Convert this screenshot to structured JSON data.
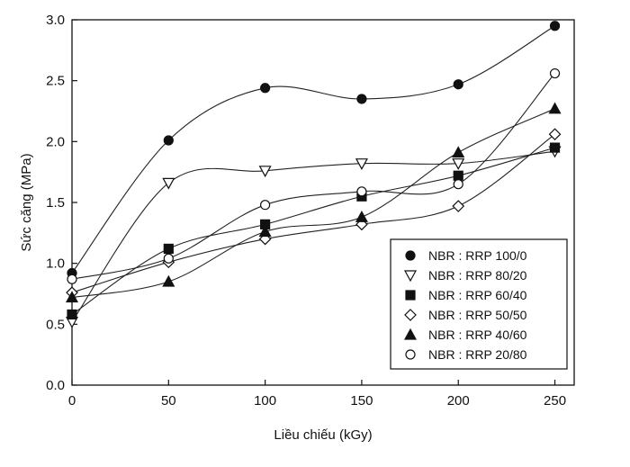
{
  "chart_data": {
    "type": "line",
    "title": "",
    "xlabel": "Liều chiếu (kGy)",
    "ylabel": "Sức căng (MPa)",
    "x": [
      0,
      50,
      100,
      150,
      200,
      250
    ],
    "xlim": [
      0,
      260
    ],
    "ylim": [
      0.0,
      3.0
    ],
    "xticks": [
      0,
      50,
      100,
      150,
      200,
      250
    ],
    "yticks": [
      0.0,
      0.5,
      1.0,
      1.5,
      2.0,
      2.5,
      3.0
    ],
    "xtick_labels": [
      "0",
      "50",
      "100",
      "150",
      "200",
      "250"
    ],
    "ytick_labels": [
      "0.0",
      "0.5",
      "1.0",
      "1.5",
      "2.0",
      "2.5",
      "3.0"
    ],
    "grid": false,
    "legend_position": "bottom-right",
    "series": [
      {
        "name": "NBR : RRP 100/0",
        "marker": "circle-filled",
        "values": [
          0.92,
          2.01,
          2.44,
          2.35,
          2.47,
          2.95
        ]
      },
      {
        "name": "NBR : RRP 80/20",
        "marker": "triangle-down-open",
        "values": [
          0.52,
          1.66,
          1.76,
          1.82,
          1.82,
          1.92
        ]
      },
      {
        "name": "NBR : RRP 60/40",
        "marker": "square-filled",
        "values": [
          0.58,
          1.12,
          1.32,
          1.55,
          1.72,
          1.95
        ]
      },
      {
        "name": "NBR : RRP 50/50",
        "marker": "diamond-open",
        "values": [
          0.76,
          1.01,
          1.2,
          1.32,
          1.47,
          2.06
        ]
      },
      {
        "name": "NBR : RRP 40/60",
        "marker": "triangle-up-filled",
        "values": [
          0.72,
          0.85,
          1.26,
          1.38,
          1.91,
          2.27
        ]
      },
      {
        "name": "NBR : RRP 20/80",
        "marker": "circle-open",
        "values": [
          0.87,
          1.04,
          1.48,
          1.59,
          1.65,
          2.56
        ]
      }
    ]
  }
}
